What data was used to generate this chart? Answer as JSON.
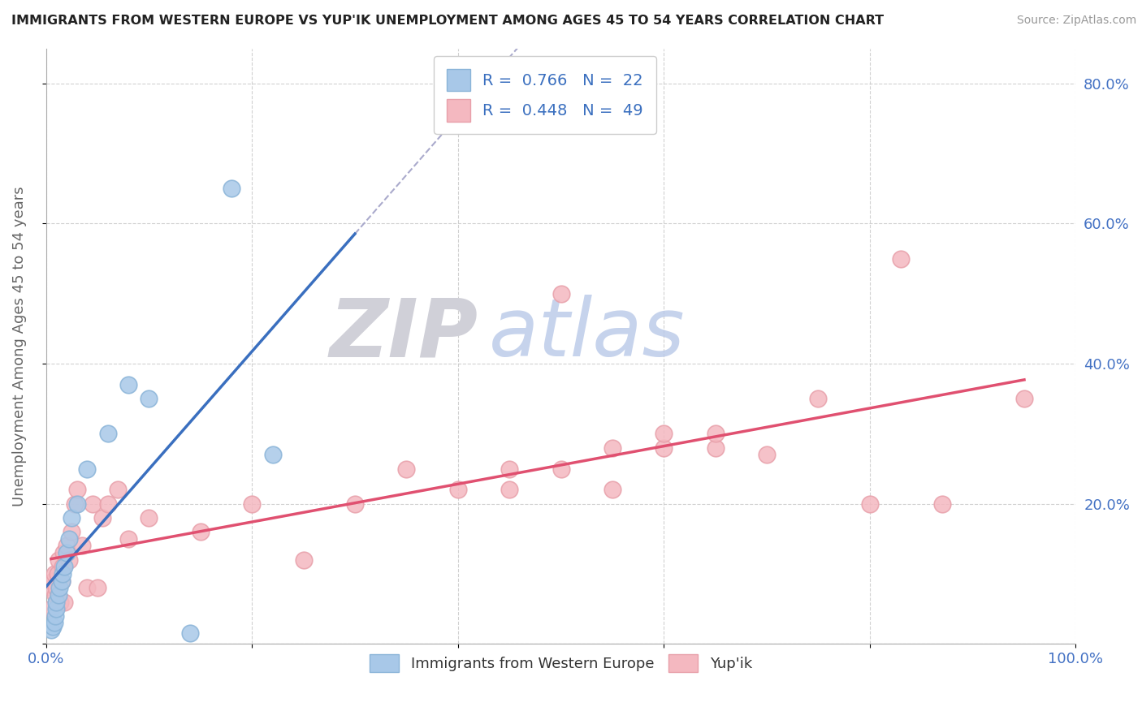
{
  "title": "IMMIGRANTS FROM WESTERN EUROPE VS YUP'IK UNEMPLOYMENT AMONG AGES 45 TO 54 YEARS CORRELATION CHART",
  "source": "Source: ZipAtlas.com",
  "ylabel": "Unemployment Among Ages 45 to 54 years",
  "xlim": [
    0,
    1.0
  ],
  "ylim": [
    0,
    0.85
  ],
  "blue_R": "0.766",
  "blue_N": "22",
  "pink_R": "0.448",
  "pink_N": "49",
  "blue_color": "#a8c8e8",
  "pink_color": "#f4b8c0",
  "blue_edge_color": "#a8c8e8",
  "pink_edge_color": "#f4b8c0",
  "blue_line_color": "#3a6fbf",
  "pink_line_color": "#e05070",
  "tick_label_color": "#4472c4",
  "legend_blue_label": "Immigrants from Western Europe",
  "legend_pink_label": "Yup'ik",
  "watermark_zip": "ZIP",
  "watermark_atlas": "atlas",
  "blue_scatter_x": [
    0.005,
    0.007,
    0.008,
    0.009,
    0.01,
    0.01,
    0.012,
    0.013,
    0.015,
    0.016,
    0.018,
    0.02,
    0.022,
    0.025,
    0.03,
    0.04,
    0.06,
    0.08,
    0.1,
    0.14,
    0.18,
    0.22
  ],
  "blue_scatter_y": [
    0.02,
    0.025,
    0.03,
    0.04,
    0.05,
    0.06,
    0.07,
    0.08,
    0.09,
    0.1,
    0.11,
    0.13,
    0.15,
    0.18,
    0.2,
    0.25,
    0.3,
    0.37,
    0.35,
    0.015,
    0.65,
    0.27
  ],
  "pink_scatter_x": [
    0.005,
    0.006,
    0.007,
    0.008,
    0.009,
    0.01,
    0.011,
    0.012,
    0.014,
    0.015,
    0.016,
    0.017,
    0.018,
    0.02,
    0.022,
    0.025,
    0.028,
    0.03,
    0.035,
    0.04,
    0.045,
    0.05,
    0.055,
    0.06,
    0.07,
    0.08,
    0.1,
    0.15,
    0.2,
    0.25,
    0.3,
    0.35,
    0.4,
    0.45,
    0.45,
    0.5,
    0.5,
    0.55,
    0.55,
    0.6,
    0.6,
    0.65,
    0.65,
    0.7,
    0.75,
    0.8,
    0.83,
    0.87,
    0.95
  ],
  "pink_scatter_y": [
    0.05,
    0.08,
    0.09,
    0.1,
    0.07,
    0.08,
    0.1,
    0.12,
    0.06,
    0.09,
    0.11,
    0.13,
    0.06,
    0.14,
    0.12,
    0.16,
    0.2,
    0.22,
    0.14,
    0.08,
    0.2,
    0.08,
    0.18,
    0.2,
    0.22,
    0.15,
    0.18,
    0.16,
    0.2,
    0.12,
    0.2,
    0.25,
    0.22,
    0.22,
    0.25,
    0.25,
    0.5,
    0.22,
    0.28,
    0.28,
    0.3,
    0.28,
    0.3,
    0.27,
    0.35,
    0.2,
    0.55,
    0.2,
    0.35
  ]
}
